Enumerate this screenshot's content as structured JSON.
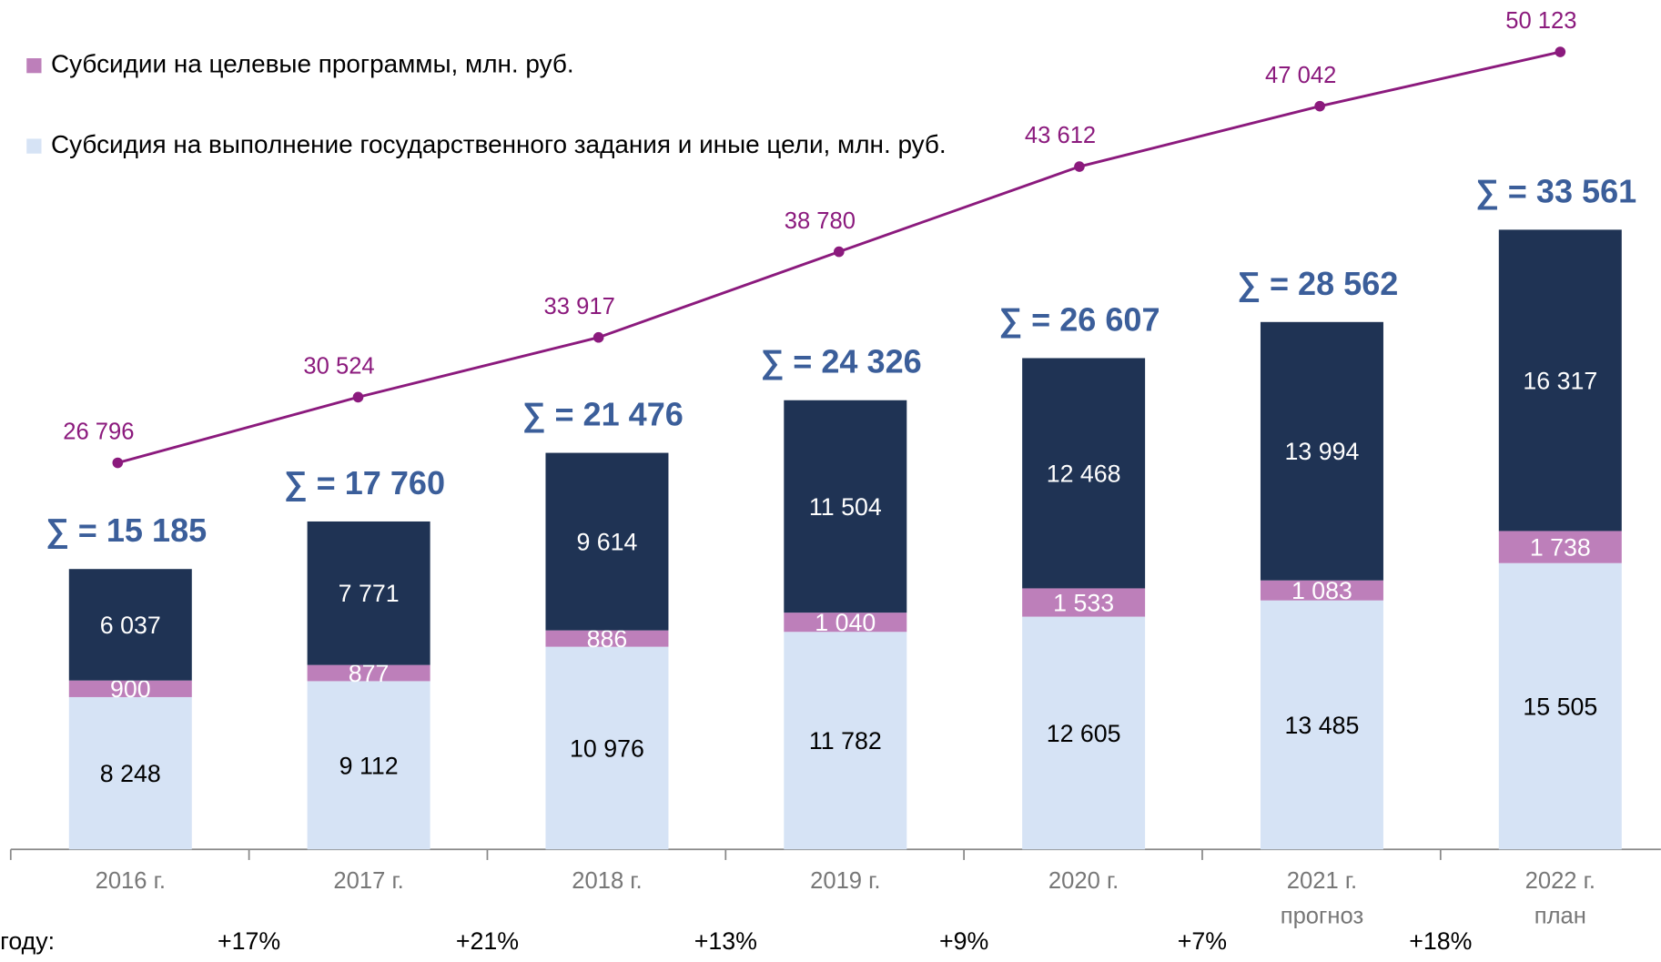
{
  "chart_data": {
    "type": "bar",
    "stacked": true,
    "categories": [
      "2016 г.",
      "2017 г.",
      "2018 г.",
      "2019 г.",
      "2020 г.",
      "2021 г.",
      "2022 г."
    ],
    "category_notes": [
      null,
      null,
      null,
      null,
      null,
      "прогноз",
      "план"
    ],
    "series": [
      {
        "name": "Субсидия на выполнение государственного задания и иные цели, млн. руб.",
        "color": "#d6e3f5",
        "text_color": "#000000",
        "values": [
          8248,
          9112,
          10976,
          11782,
          12605,
          13485,
          15505
        ],
        "value_labels": [
          "8 248",
          "9 112",
          "10 976",
          "11 782",
          "12 605",
          "13 485",
          "15 505"
        ]
      },
      {
        "name": "Субсидии на целевые программы, млн. руб.",
        "color": "#bd7fba",
        "text_color": "#ffffff",
        "values": [
          900,
          877,
          886,
          1040,
          1533,
          1083,
          1738
        ],
        "value_labels": [
          "900",
          "877",
          "886",
          "1 040",
          "1 533",
          "1 083",
          "1 738"
        ]
      },
      {
        "color": "#1f3354",
        "text_color": "#ffffff",
        "values": [
          6037,
          7771,
          9614,
          11504,
          12468,
          13994,
          16317
        ],
        "value_labels": [
          "6 037",
          "7 771",
          "9 614",
          "11 504",
          "12 468",
          "13 994",
          "16 317"
        ]
      },
      {
        "type": "line",
        "axis": "y2",
        "color": "#8b1a7d",
        "values": [
          26796,
          30524,
          33917,
          38780,
          43612,
          47042,
          50123
        ],
        "value_labels": [
          "26 796",
          "30 524",
          "33 917",
          "38 780",
          "43 612",
          "47 042",
          "50 123"
        ]
      }
    ],
    "total_labels": [
      "∑ = 15 185",
      "∑ = 17 760",
      "∑ = 21 476",
      "∑ = 24 326",
      "∑ = 26 607",
      "∑ = 28 562",
      "∑ = 33 561"
    ],
    "growth_caption": "году:",
    "growth_labels": [
      "+17%",
      "+21%",
      "+13%",
      "+9%",
      "+7%",
      "+18%"
    ],
    "ylim": [
      0,
      46000
    ],
    "y2lim": [
      4850,
      53070
    ]
  }
}
